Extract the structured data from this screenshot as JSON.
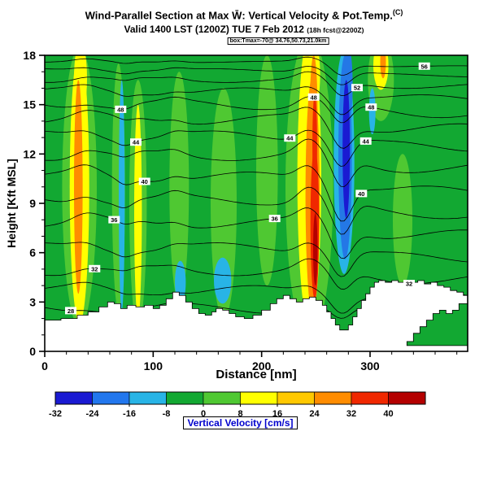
{
  "header": {
    "title_main": "Wind-Parallel Section at Max W̄: Vertical Velocity & Pot.Temp.",
    "title_unit": "(C)",
    "subtitle_main": "Valid 1400 LST (1200Z) TUE 7 Feb 2012 ",
    "subtitle_small": "(18h fcst@2200Z)",
    "info_line": "box:Tmax=-70@ 34.76,50.73,21.0km"
  },
  "chart_data": {
    "type": "heatmap",
    "subtype": "filled-contour vertical cross-section of vertical velocity with potential-temperature isentropes and terrain mask",
    "x_max": 390,
    "y_max": 18,
    "field_units": "cm/s",
    "line_units": "C",
    "axes": {
      "xlabel": "Distance [nm]",
      "ylabel": "Height [Kft MSL]",
      "x_ticks": [
        0,
        100,
        200,
        300
      ],
      "y_ticks": [
        0,
        3,
        6,
        9,
        12,
        15,
        18
      ],
      "x_minor_step": 20,
      "y_minor_step": 1
    },
    "colorbar": {
      "label": "Vertical Velocity [cm/s]",
      "label_color": "#0000cd",
      "ticks": [
        -32,
        -24,
        -16,
        -8,
        0,
        8,
        16,
        24,
        32,
        40
      ],
      "colors": [
        "#1a1ad2",
        "#2277ee",
        "#28b4e6",
        "#12a832",
        "#4fc832",
        "#ffff00",
        "#ffc800",
        "#ff8c00",
        "#f02800",
        "#b40000"
      ]
    },
    "base_value_color": "#12a832",
    "terrain": [
      [
        0,
        1.9
      ],
      [
        15,
        2.0
      ],
      [
        30,
        2.2
      ],
      [
        40,
        2.4
      ],
      [
        50,
        2.7
      ],
      [
        58,
        3.0
      ],
      [
        64,
        2.9
      ],
      [
        70,
        2.6
      ],
      [
        76,
        2.8
      ],
      [
        84,
        2.7
      ],
      [
        92,
        2.8
      ],
      [
        100,
        2.6
      ],
      [
        106,
        2.8
      ],
      [
        112,
        3.2
      ],
      [
        118,
        3.6
      ],
      [
        124,
        3.4
      ],
      [
        130,
        3.0
      ],
      [
        136,
        2.6
      ],
      [
        142,
        2.3
      ],
      [
        148,
        2.2
      ],
      [
        154,
        2.4
      ],
      [
        158,
        2.6
      ],
      [
        164,
        2.5
      ],
      [
        170,
        2.3
      ],
      [
        176,
        2.1
      ],
      [
        184,
        2.0
      ],
      [
        192,
        2.2
      ],
      [
        200,
        2.5
      ],
      [
        208,
        2.9
      ],
      [
        214,
        3.2
      ],
      [
        220,
        3.4
      ],
      [
        226,
        3.2
      ],
      [
        232,
        3.0
      ],
      [
        238,
        3.2
      ],
      [
        244,
        3.3
      ],
      [
        250,
        3.1
      ],
      [
        256,
        2.8
      ],
      [
        260,
        2.4
      ],
      [
        264,
        2.0
      ],
      [
        268,
        1.6
      ],
      [
        272,
        1.3
      ],
      [
        276,
        1.3
      ],
      [
        280,
        1.6
      ],
      [
        284,
        2.1
      ],
      [
        288,
        2.6
      ],
      [
        292,
        3.1
      ],
      [
        296,
        3.5
      ],
      [
        300,
        3.9
      ],
      [
        304,
        4.2
      ],
      [
        308,
        4.3
      ],
      [
        314,
        4.2
      ],
      [
        320,
        4.3
      ],
      [
        326,
        4.2
      ],
      [
        332,
        4.3
      ],
      [
        338,
        4.2
      ],
      [
        344,
        4.3
      ],
      [
        350,
        4.1
      ],
      [
        356,
        4.2
      ],
      [
        362,
        4.0
      ],
      [
        368,
        3.9
      ],
      [
        374,
        3.7
      ],
      [
        380,
        3.6
      ],
      [
        386,
        3.4
      ],
      [
        390,
        3.3
      ]
    ],
    "pocket": [
      [
        334,
        0.6
      ],
      [
        340,
        1.1
      ],
      [
        346,
        1.5
      ],
      [
        352,
        1.9
      ],
      [
        358,
        2.3
      ],
      [
        364,
        2.5
      ],
      [
        370,
        2.3
      ],
      [
        376,
        2.5
      ],
      [
        382,
        2.9
      ],
      [
        390,
        3.2
      ]
    ],
    "blobs": [
      [
        32,
        10,
        16,
        8.5,
        "#4fc832"
      ],
      [
        68,
        10,
        6,
        7.5,
        "#4fc832"
      ],
      [
        86,
        9,
        8,
        7.5,
        "#4fc832"
      ],
      [
        124,
        10,
        9,
        7,
        "#4fc832"
      ],
      [
        165,
        9,
        12,
        7,
        "#4fc832"
      ],
      [
        205,
        11,
        10,
        7,
        "#4fc832"
      ],
      [
        244,
        10,
        22,
        9.2,
        "#4fc832"
      ],
      [
        310,
        16.5,
        12,
        2.5,
        "#4fc832"
      ],
      [
        330,
        8,
        9,
        4,
        "#4fc832"
      ],
      [
        32,
        10,
        9,
        8.3,
        "#ffff00"
      ],
      [
        33,
        16.6,
        6,
        2.2,
        "#ffff00"
      ],
      [
        86,
        8.5,
        3.5,
        6.5,
        "#ffff00"
      ],
      [
        244,
        10.5,
        11,
        8.8,
        "#ffff00"
      ],
      [
        247,
        16.8,
        7,
        2.2,
        "#ffff00"
      ],
      [
        310,
        17.4,
        7,
        1.5,
        "#ffff00"
      ],
      [
        31,
        10,
        4,
        6.5,
        "#ff8c00"
      ],
      [
        247,
        9.5,
        6.5,
        7.2,
        "#ff8c00"
      ],
      [
        248,
        14.6,
        3.5,
        3.4,
        "#ff8c00"
      ],
      [
        312,
        17.6,
        2.6,
        1.0,
        "#ff8c00"
      ],
      [
        249,
        7.8,
        4,
        4.6,
        "#f02800"
      ],
      [
        249,
        12.6,
        2.2,
        3,
        "#f02800"
      ],
      [
        249.5,
        6.2,
        2,
        2.2,
        "#b40000"
      ],
      [
        71,
        9.5,
        2.8,
        7,
        "#28b4e6"
      ],
      [
        125,
        4.2,
        5,
        1.3,
        "#28b4e6"
      ],
      [
        164,
        4.3,
        8,
        1.4,
        "#28b4e6"
      ],
      [
        276,
        11.5,
        9.5,
        6.8,
        "#28b4e6"
      ],
      [
        302,
        14.6,
        3,
        1.4,
        "#28b4e6"
      ],
      [
        277,
        11.8,
        6.2,
        6.2,
        "#2478e6"
      ],
      [
        280,
        16.2,
        4,
        2.3,
        "#2478e6"
      ],
      [
        278,
        12.3,
        3.4,
        4.2,
        "#1a1ad2"
      ]
    ],
    "isentropes": {
      "levels": [
        {
          "theta": 28,
          "h": 2.6
        },
        {
          "theta": 30,
          "h": 3.7
        },
        {
          "theta": 32,
          "h": 4.9
        },
        {
          "theta": 34,
          "h": 6.3
        },
        {
          "theta": 36,
          "h": 7.8
        },
        {
          "theta": 38,
          "h": 9.2
        },
        {
          "theta": 40,
          "h": 10.6
        },
        {
          "theta": 42,
          "h": 11.9
        },
        {
          "theta": 44,
          "h": 13.1
        },
        {
          "theta": 46,
          "h": 14.1
        },
        {
          "theta": 48,
          "h": 15.0
        },
        {
          "theta": 50,
          "h": 15.8
        },
        {
          "theta": 52,
          "h": 16.5
        },
        {
          "theta": 54,
          "h": 17.1
        },
        {
          "theta": 56,
          "h": 17.6
        }
      ],
      "disturbances": [
        {
          "type": "gauss",
          "center": 38,
          "width": 16,
          "amp": 0.5
        },
        {
          "type": "gauss",
          "center": 74,
          "width": 10,
          "amp": -0.4
        },
        {
          "type": "gauss",
          "center": 120,
          "width": 12,
          "amp": 0.3
        },
        {
          "type": "gauss",
          "center": 243,
          "width": 14,
          "amp": 0.9
        },
        {
          "type": "gauss",
          "center": 274,
          "width": 13,
          "amp": -2.4
        },
        {
          "type": "sigmoid",
          "center": 290,
          "width": 10,
          "amp": -0.9
        }
      ],
      "labels": [
        {
          "theta": 28,
          "x": 24
        },
        {
          "theta": 32,
          "x": 46
        },
        {
          "theta": 36,
          "x": 64
        },
        {
          "theta": 48,
          "x": 70
        },
        {
          "theta": 44,
          "x": 84
        },
        {
          "theta": 40,
          "x": 92
        },
        {
          "theta": 36,
          "x": 212
        },
        {
          "theta": 44,
          "x": 226
        },
        {
          "theta": 48,
          "x": 248
        },
        {
          "theta": 52,
          "x": 288
        },
        {
          "theta": 40,
          "x": 292
        },
        {
          "theta": 44,
          "x": 296
        },
        {
          "theta": 48,
          "x": 301
        },
        {
          "theta": 32,
          "x": 336
        },
        {
          "theta": 56,
          "x": 350
        }
      ]
    }
  }
}
